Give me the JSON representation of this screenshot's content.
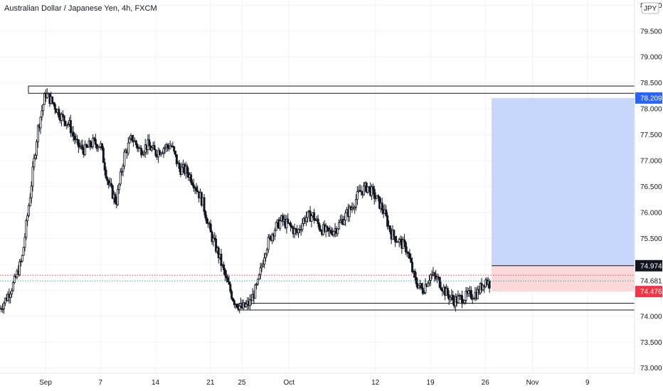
{
  "chart_data": {
    "type": "candlestick",
    "title": "Australian Dollar / Japanese Yen, 4h, FXCM",
    "currency_badge": "JPY",
    "ylim": [
      72.9,
      80.1
    ],
    "y_ticks": [
      "73.000",
      "73.500",
      "74.000",
      "74.500",
      "75.000",
      "75.500",
      "76.000",
      "76.500",
      "77.000",
      "77.500",
      "78.000",
      "78.500",
      "79.000",
      "79.500",
      "80.000"
    ],
    "x_ticks": [
      {
        "label": "Sep",
        "day": 31
      },
      {
        "label": "7",
        "day": 38
      },
      {
        "label": "14",
        "day": 45
      },
      {
        "label": "21",
        "day": 52
      },
      {
        "label": "25",
        "day": 56
      },
      {
        "label": "Oct",
        "day": 62
      },
      {
        "label": "12",
        "day": 73
      },
      {
        "label": "19",
        "day": 80
      },
      {
        "label": "26",
        "day": 87
      },
      {
        "label": "Nov",
        "day": 93
      },
      {
        "label": "9",
        "day": 100
      }
    ],
    "x_range_days": [
      25.2,
      106.0
    ],
    "close_path": [
      [
        25.2,
        74.15
      ],
      [
        26,
        74.35
      ],
      [
        27,
        74.65
      ],
      [
        28,
        75.1
      ],
      [
        29,
        76.3
      ],
      [
        30,
        77.6
      ],
      [
        31,
        78.3
      ],
      [
        32,
        78.1
      ],
      [
        33,
        77.85
      ],
      [
        34,
        77.7
      ],
      [
        35,
        77.3
      ],
      [
        36,
        77.2
      ],
      [
        37,
        77.35
      ],
      [
        38,
        77.3
      ],
      [
        39,
        76.55
      ],
      [
        40,
        76.2
      ],
      [
        41,
        77.1
      ],
      [
        42,
        77.45
      ],
      [
        43,
        77.2
      ],
      [
        44,
        77.3
      ],
      [
        45,
        77.15
      ],
      [
        46,
        77.25
      ],
      [
        47,
        77.3
      ],
      [
        48,
        76.85
      ],
      [
        49,
        76.8
      ],
      [
        50,
        76.55
      ],
      [
        51,
        76.2
      ],
      [
        52,
        75.6
      ],
      [
        53,
        75.2
      ],
      [
        54,
        74.7
      ],
      [
        55,
        74.3
      ],
      [
        56,
        74.15
      ],
      [
        57,
        74.25
      ],
      [
        58,
        74.6
      ],
      [
        59,
        75.3
      ],
      [
        60,
        75.65
      ],
      [
        61,
        75.85
      ],
      [
        62,
        75.75
      ],
      [
        63,
        75.6
      ],
      [
        64,
        75.9
      ],
      [
        65,
        75.95
      ],
      [
        66,
        75.7
      ],
      [
        67,
        75.6
      ],
      [
        68,
        75.7
      ],
      [
        69,
        75.9
      ],
      [
        70,
        76.1
      ],
      [
        71,
        76.4
      ],
      [
        72,
        76.5
      ],
      [
        73,
        76.3
      ],
      [
        74,
        76.05
      ],
      [
        75,
        75.6
      ],
      [
        76,
        75.45
      ],
      [
        77,
        75.3
      ],
      [
        78,
        74.7
      ],
      [
        79,
        74.5
      ],
      [
        80,
        74.8
      ],
      [
        81,
        74.7
      ],
      [
        82,
        74.45
      ],
      [
        83,
        74.3
      ],
      [
        84,
        74.35
      ],
      [
        85,
        74.4
      ],
      [
        86,
        74.45
      ],
      [
        87,
        74.7
      ],
      [
        87.7,
        74.6
      ]
    ],
    "zones": [
      {
        "name": "resistance-zone",
        "y_top": 78.44,
        "y_bottom": 78.3,
        "x_from_day": 25.2,
        "x_to_day": 106.0
      },
      {
        "name": "support-zone",
        "y_top": 74.25,
        "y_bottom": 74.12,
        "x_from_day": 56,
        "x_to_day": 106.0
      }
    ],
    "position": {
      "type": "long",
      "entry": 74.974,
      "target": 78.209,
      "stop": 74.476,
      "x_from_day": 87.8,
      "x_to_day": 106.0
    },
    "dotted_lines": [
      {
        "y": 74.79,
        "color": "#f23645"
      },
      {
        "y": 74.681,
        "color": "#089981"
      }
    ],
    "price_tags": [
      {
        "value": "78.209",
        "y": 78.209,
        "bg": "#2962ff",
        "fg": "#ffffff"
      },
      {
        "value": "74.974",
        "y": 74.974,
        "bg": "#131722",
        "fg": "#ffffff"
      },
      {
        "value": "74.681",
        "y": 74.681,
        "bg": "#ffffff",
        "fg": "#131722"
      },
      {
        "value": "74.476",
        "y": 74.476,
        "bg": "#f23645",
        "fg": "#ffffff"
      }
    ],
    "colors": {
      "candle": "#131722",
      "target_fill": "#c6d7fb",
      "stop_fill": "#fbd9da",
      "grid": "#f0f3fa"
    }
  }
}
